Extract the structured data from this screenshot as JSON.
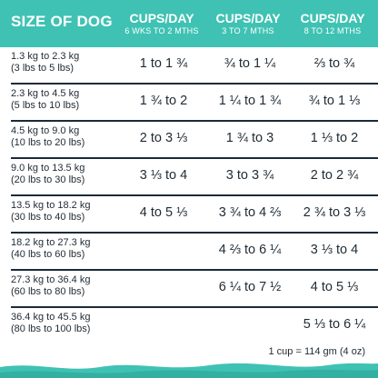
{
  "header": {
    "size_label": "SIZE OF DOG",
    "columns": [
      {
        "title": "CUPS/DAY",
        "subtitle": "6 WKS TO 2 MTHS"
      },
      {
        "title": "CUPS/DAY",
        "subtitle": "3 TO 7 MTHS"
      },
      {
        "title": "CUPS/DAY",
        "subtitle": "8 TO 12 MTHS"
      }
    ]
  },
  "rows": [
    {
      "kg": "1.3 kg to 2.3 kg",
      "lbs": "(3 lbs to 5 lbs)",
      "values": [
        "1 to 1 ¾",
        "¾ to 1 ¼",
        "⅔ to ¾"
      ]
    },
    {
      "kg": "2.3 kg to 4.5 kg",
      "lbs": "(5 lbs to 10 lbs)",
      "values": [
        "1 ¾ to 2",
        "1 ¼ to 1 ¾",
        "¾ to 1 ⅓"
      ]
    },
    {
      "kg": "4.5 kg to 9.0 kg",
      "lbs": "(10 lbs to 20 lbs)",
      "values": [
        "2 to 3 ⅓",
        "1 ¾ to 3",
        "1 ⅓ to 2"
      ]
    },
    {
      "kg": "9.0 kg to 13.5 kg",
      "lbs": "(20 lbs to 30 lbs)",
      "values": [
        "3 ⅓ to 4",
        "3 to 3 ¾",
        "2 to 2 ¾"
      ]
    },
    {
      "kg": "13.5 kg to 18.2 kg",
      "lbs": "(30 lbs to 40 lbs)",
      "values": [
        "4 to 5 ⅓",
        "3 ¾ to 4 ⅔",
        "2 ¾ to 3 ⅓"
      ]
    },
    {
      "kg": "18.2 kg to 27.3 kg",
      "lbs": "(40 lbs to 60 lbs)",
      "values": [
        "",
        "4 ⅔ to 6 ¼",
        "3 ⅓ to 4"
      ]
    },
    {
      "kg": "27.3 kg to 36.4 kg",
      "lbs": "(60 lbs to 80 lbs)",
      "values": [
        "",
        "6 ¼ to 7 ½",
        "4 to 5 ⅓"
      ]
    },
    {
      "kg": "36.4 kg to 45.5 kg",
      "lbs": "(80 lbs to 100 lbs)",
      "values": [
        "",
        "",
        "5 ⅓ to 6 ¼"
      ]
    }
  ],
  "footnote": "1 cup = 114 gm (4 oz)",
  "colors": {
    "header": "#3fc2b3",
    "wave": "#3fc2b3",
    "rule": "#1a2a3a"
  }
}
